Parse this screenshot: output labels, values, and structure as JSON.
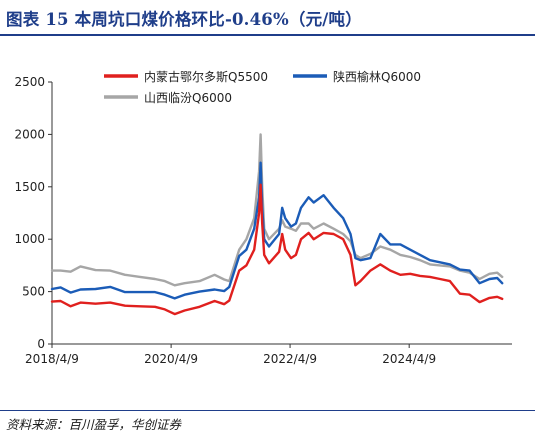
{
  "page": {
    "title": "图表 15   本周坑口煤价格环比-0.46%（元/吨）",
    "source": "资料来源：百川盈孚，华创证券"
  },
  "chart_data": {
    "type": "line",
    "title": "",
    "xlabel": "",
    "ylabel": "",
    "ylim": [
      0,
      2500
    ],
    "yticks": [
      0,
      500,
      1000,
      1500,
      2000,
      2500
    ],
    "xlim": [
      "2018-04-09",
      "2025-12-31"
    ],
    "xticks": [
      "2018/4/9",
      "2020/4/9",
      "2022/4/9",
      "2024/4/9"
    ],
    "xtick_dates": [
      "2018-04-09",
      "2020-04-09",
      "2022-04-09",
      "2024-04-09"
    ],
    "grid": false,
    "legend_position": "top",
    "series": [
      {
        "name": "内蒙古鄂尔多斯Q5500",
        "color": "#e0201e",
        "points": [
          [
            "2018-04-09",
            405
          ],
          [
            "2018-06-01",
            410
          ],
          [
            "2018-08-01",
            360
          ],
          [
            "2018-10-01",
            395
          ],
          [
            "2019-01-01",
            385
          ],
          [
            "2019-04-01",
            395
          ],
          [
            "2019-07-01",
            365
          ],
          [
            "2019-10-01",
            360
          ],
          [
            "2020-01-01",
            355
          ],
          [
            "2020-03-01",
            330
          ],
          [
            "2020-05-01",
            285
          ],
          [
            "2020-07-01",
            320
          ],
          [
            "2020-10-01",
            355
          ],
          [
            "2021-01-01",
            410
          ],
          [
            "2021-03-01",
            380
          ],
          [
            "2021-04-01",
            415
          ],
          [
            "2021-06-01",
            700
          ],
          [
            "2021-07-15",
            750
          ],
          [
            "2021-09-01",
            900
          ],
          [
            "2021-10-01",
            1250
          ],
          [
            "2021-10-10",
            1520
          ],
          [
            "2021-10-20",
            1150
          ],
          [
            "2021-11-01",
            850
          ],
          [
            "2021-12-01",
            770
          ],
          [
            "2022-02-01",
            880
          ],
          [
            "2022-02-20",
            1050
          ],
          [
            "2022-03-10",
            900
          ],
          [
            "2022-04-15",
            820
          ],
          [
            "2022-05-15",
            850
          ],
          [
            "2022-06-15",
            1000
          ],
          [
            "2022-08-01",
            1060
          ],
          [
            "2022-09-01",
            1000
          ],
          [
            "2022-11-01",
            1060
          ],
          [
            "2023-01-01",
            1050
          ],
          [
            "2023-03-01",
            1000
          ],
          [
            "2023-04-15",
            850
          ],
          [
            "2023-05-15",
            560
          ],
          [
            "2023-06-15",
            600
          ],
          [
            "2023-08-15",
            700
          ],
          [
            "2023-10-15",
            760
          ],
          [
            "2023-12-15",
            700
          ],
          [
            "2024-02-15",
            660
          ],
          [
            "2024-04-15",
            670
          ],
          [
            "2024-06-15",
            650
          ],
          [
            "2024-08-15",
            640
          ],
          [
            "2024-10-15",
            620
          ],
          [
            "2024-12-15",
            600
          ],
          [
            "2025-02-15",
            480
          ],
          [
            "2025-04-15",
            470
          ],
          [
            "2025-06-15",
            400
          ],
          [
            "2025-08-15",
            440
          ],
          [
            "2025-10-01",
            450
          ],
          [
            "2025-11-01",
            430
          ]
        ]
      },
      {
        "name": "陕西榆林Q6000",
        "color": "#1b5cb7",
        "points": [
          [
            "2018-04-09",
            525
          ],
          [
            "2018-06-01",
            540
          ],
          [
            "2018-08-01",
            490
          ],
          [
            "2018-10-01",
            520
          ],
          [
            "2019-01-01",
            525
          ],
          [
            "2019-04-01",
            545
          ],
          [
            "2019-07-01",
            495
          ],
          [
            "2019-10-01",
            495
          ],
          [
            "2020-01-01",
            495
          ],
          [
            "2020-03-01",
            470
          ],
          [
            "2020-05-01",
            435
          ],
          [
            "2020-07-01",
            470
          ],
          [
            "2020-10-01",
            500
          ],
          [
            "2021-01-01",
            520
          ],
          [
            "2021-03-01",
            505
          ],
          [
            "2021-04-01",
            545
          ],
          [
            "2021-06-01",
            840
          ],
          [
            "2021-07-15",
            900
          ],
          [
            "2021-09-01",
            1100
          ],
          [
            "2021-10-01",
            1400
          ],
          [
            "2021-10-10",
            1730
          ],
          [
            "2021-10-20",
            1300
          ],
          [
            "2021-11-01",
            1000
          ],
          [
            "2021-12-01",
            930
          ],
          [
            "2022-02-01",
            1050
          ],
          [
            "2022-02-20",
            1300
          ],
          [
            "2022-03-10",
            1200
          ],
          [
            "2022-04-15",
            1120
          ],
          [
            "2022-05-15",
            1150
          ],
          [
            "2022-06-15",
            1300
          ],
          [
            "2022-08-01",
            1400
          ],
          [
            "2022-09-01",
            1350
          ],
          [
            "2022-11-01",
            1420
          ],
          [
            "2023-01-01",
            1300
          ],
          [
            "2023-03-01",
            1200
          ],
          [
            "2023-04-15",
            1050
          ],
          [
            "2023-05-15",
            820
          ],
          [
            "2023-06-15",
            800
          ],
          [
            "2023-08-15",
            820
          ],
          [
            "2023-10-15",
            1050
          ],
          [
            "2023-12-15",
            950
          ],
          [
            "2024-02-15",
            950
          ],
          [
            "2024-04-15",
            900
          ],
          [
            "2024-06-15",
            850
          ],
          [
            "2024-08-15",
            800
          ],
          [
            "2024-10-15",
            780
          ],
          [
            "2024-12-15",
            760
          ],
          [
            "2025-02-15",
            710
          ],
          [
            "2025-04-15",
            700
          ],
          [
            "2025-06-15",
            580
          ],
          [
            "2025-08-15",
            620
          ],
          [
            "2025-10-01",
            630
          ],
          [
            "2025-11-01",
            580
          ]
        ]
      },
      {
        "name": "山西临汾Q6000",
        "color": "#a6a6a6",
        "points": [
          [
            "2018-04-09",
            700
          ],
          [
            "2018-06-01",
            700
          ],
          [
            "2018-08-01",
            690
          ],
          [
            "2018-10-01",
            740
          ],
          [
            "2019-01-01",
            705
          ],
          [
            "2019-04-01",
            700
          ],
          [
            "2019-07-01",
            660
          ],
          [
            "2019-10-01",
            640
          ],
          [
            "2020-01-01",
            620
          ],
          [
            "2020-03-01",
            600
          ],
          [
            "2020-05-01",
            560
          ],
          [
            "2020-07-01",
            580
          ],
          [
            "2020-10-01",
            600
          ],
          [
            "2021-01-01",
            660
          ],
          [
            "2021-03-01",
            615
          ],
          [
            "2021-04-01",
            600
          ],
          [
            "2021-06-01",
            900
          ],
          [
            "2021-07-15",
            1000
          ],
          [
            "2021-09-01",
            1200
          ],
          [
            "2021-10-01",
            1650
          ],
          [
            "2021-10-10",
            2000
          ],
          [
            "2021-10-20",
            1500
          ],
          [
            "2021-11-01",
            1100
          ],
          [
            "2021-12-01",
            1000
          ],
          [
            "2022-02-01",
            1100
          ],
          [
            "2022-02-20",
            1180
          ],
          [
            "2022-03-10",
            1120
          ],
          [
            "2022-04-15",
            1100
          ],
          [
            "2022-05-15",
            1080
          ],
          [
            "2022-06-15",
            1150
          ],
          [
            "2022-08-01",
            1150
          ],
          [
            "2022-09-01",
            1100
          ],
          [
            "2022-11-01",
            1150
          ],
          [
            "2023-01-01",
            1100
          ],
          [
            "2023-03-01",
            1050
          ],
          [
            "2023-04-15",
            980
          ],
          [
            "2023-05-15",
            850
          ],
          [
            "2023-06-15",
            820
          ],
          [
            "2023-08-15",
            860
          ],
          [
            "2023-10-15",
            930
          ],
          [
            "2023-12-15",
            900
          ],
          [
            "2024-02-15",
            850
          ],
          [
            "2024-04-15",
            830
          ],
          [
            "2024-06-15",
            800
          ],
          [
            "2024-08-15",
            760
          ],
          [
            "2024-10-15",
            750
          ],
          [
            "2024-12-15",
            740
          ],
          [
            "2025-02-15",
            700
          ],
          [
            "2025-04-15",
            680
          ],
          [
            "2025-06-15",
            620
          ],
          [
            "2025-08-15",
            670
          ],
          [
            "2025-10-01",
            680
          ],
          [
            "2025-11-01",
            640
          ]
        ]
      }
    ]
  }
}
